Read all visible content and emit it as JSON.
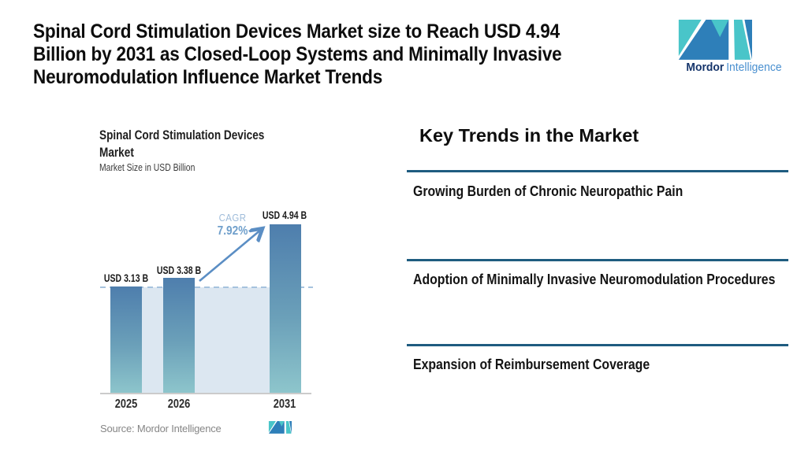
{
  "header": {
    "title_lines": [
      "Spinal Cord Stimulation Devices Market size to Reach USD 4.94",
      "Billion by 2031 as Closed-Loop Systems and Minimally Invasive",
      "Neuromodulation Influence Market Trends"
    ],
    "logo": {
      "brand_bold": "Mordor",
      "brand_light": "Intelligence"
    }
  },
  "chart": {
    "title_display": "Spinal Cord Stimulation Devices\nMarket",
    "subtitle": "Market Size in USD Billion",
    "source": "Source: Mordor Intelligence"
  },
  "chart_data": {
    "type": "bar",
    "title": "Spinal Cord Stimulation Devices Market",
    "ylabel": "Market Size in USD Billion",
    "categories": [
      "2025",
      "2026",
      "2031"
    ],
    "values": [
      3.13,
      3.38,
      4.94
    ],
    "value_labels": [
      "USD 3.13 B",
      "USD 3.38 B",
      "USD 4.94 B"
    ],
    "cagr": {
      "label": "CAGR",
      "value": "7.92%"
    },
    "ylim": [
      0,
      5.5
    ],
    "baseline_reference": 3.13,
    "legend": "none",
    "grid": "off",
    "annotations": [
      "dashed horizontal reference line at 2025 level (3.13)",
      "light shaded band under reference line between first and last bar",
      "growth arrow from top of 2026 bar to top of 2031 bar"
    ],
    "source": "Source: Mordor Intelligence"
  },
  "trends": {
    "heading": "Key Trends in the Market",
    "items": [
      "Growing Burden of Chronic Neuropathic Pain",
      "Adoption of Minimally Invasive Neuromodulation Procedures",
      "Expansion of Reimbursement Coverage"
    ]
  },
  "colors": {
    "bar_gradient_top": "#4e7ead",
    "bar_gradient_bottom": "#8ec6cc",
    "shaded_area": "#dce7f1",
    "dashed_line": "#a6c3de",
    "arrow": "#5b8ec4",
    "trend_rule": "#1f5c80",
    "logo_teal": "#49c5c9",
    "logo_blue": "#2e7fb9",
    "brand_navy": "#16356b",
    "brand_light_blue": "#4a90d0"
  }
}
